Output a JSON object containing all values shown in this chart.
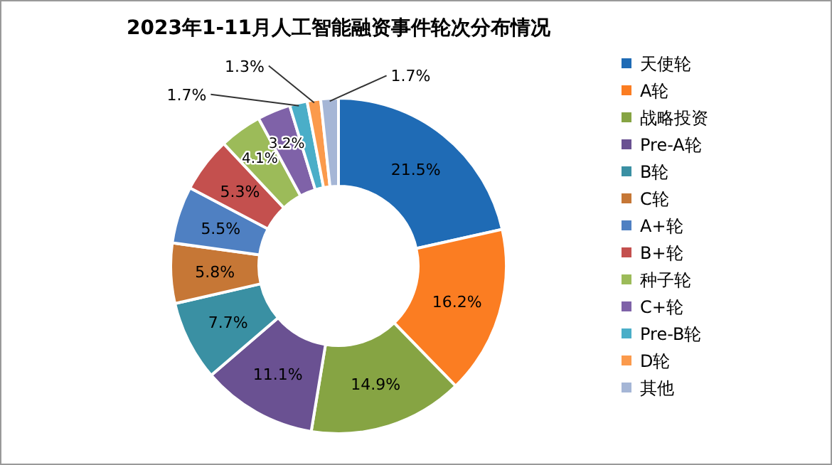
{
  "chart_data": {
    "type": "donut",
    "title": "2023年1-11月人工智能融资事件轮次分布情况",
    "categories": [
      "天使轮",
      "A轮",
      "战略投资",
      "Pre-A轮",
      "B轮",
      "C轮",
      "A+轮",
      "B+轮",
      "种子轮",
      "C+轮",
      "Pre-B轮",
      "D轮",
      "其他"
    ],
    "values": [
      21.5,
      16.2,
      14.9,
      11.1,
      7.7,
      5.8,
      5.5,
      5.3,
      4.1,
      3.2,
      1.7,
      1.3,
      1.7
    ],
    "value_labels": [
      "21.5%",
      "16.2%",
      "14.9%",
      "11.1%",
      "7.7%",
      "5.8%",
      "5.5%",
      "5.3%",
      "4.1%",
      "3.2%",
      "1.7%",
      "1.3%",
      "1.7%"
    ],
    "colors": [
      "#1f6bb5",
      "#fb7d22",
      "#86a443",
      "#6a5192",
      "#3a90a3",
      "#c67736",
      "#4f80c2",
      "#c4504e",
      "#9cbb59",
      "#7f62a8",
      "#4aaec8",
      "#fb9a4c",
      "#a5b6d6"
    ],
    "legend": "right"
  }
}
